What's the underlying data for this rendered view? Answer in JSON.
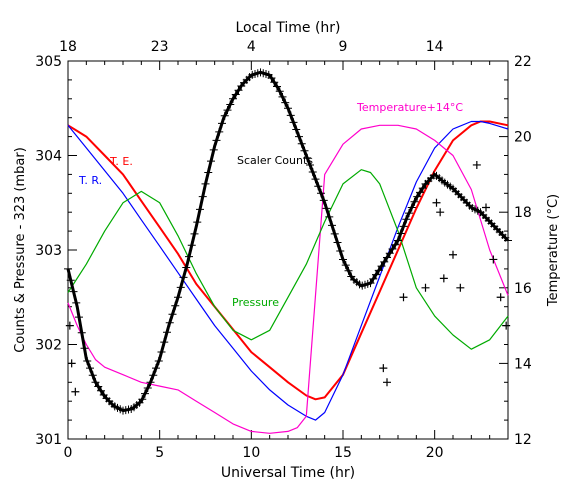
{
  "chart_data": {
    "type": "line",
    "xlabel": "Universal Time (hr)",
    "top_xlabel": "Local Time (hr)",
    "ylabel": "Counts & Pressure - 323 (mbar)",
    "right_ylabel": "Temperature (°C)",
    "xlim": [
      0,
      24
    ],
    "ylim": [
      301,
      305
    ],
    "right_ylim": [
      12,
      22
    ],
    "x_ticks": [
      "0",
      "5",
      "10",
      "15",
      "20"
    ],
    "top_x_ticks": [
      "18",
      "23",
      "4",
      "9",
      "14"
    ],
    "y_ticks": [
      "301",
      "302",
      "303",
      "304",
      "305"
    ],
    "right_y_ticks": [
      "12",
      "14",
      "16",
      "18",
      "20",
      "22"
    ],
    "colors": {
      "te": "#ff0000",
      "tr": "#0000ff",
      "temperature": "#ff00cc",
      "pressure": "#00aa00",
      "counts": "#000000"
    },
    "annotations": {
      "te": "T. E.",
      "tr": "T. R.",
      "counts": "Scaler Counts",
      "temperature": "Temperature+14°C",
      "pressure": "Pressure"
    },
    "series": [
      {
        "key": "te",
        "name": "T. E.",
        "axis": "right",
        "x": [
          0,
          1,
          2,
          3,
          4,
          5,
          6,
          7,
          8,
          9,
          10,
          11,
          12,
          13,
          13.5,
          14,
          15,
          16,
          17,
          18,
          19,
          20,
          21,
          22,
          22.5,
          23,
          24
        ],
        "y": [
          20.3,
          20.0,
          19.5,
          19.0,
          18.3,
          17.6,
          16.9,
          16.1,
          15.5,
          14.9,
          14.3,
          13.9,
          13.5,
          13.15,
          13.05,
          13.1,
          13.7,
          14.8,
          15.9,
          17.0,
          18.1,
          19.1,
          19.9,
          20.3,
          20.4,
          20.4,
          20.3
        ]
      },
      {
        "key": "tr",
        "name": "T. R.",
        "axis": "right",
        "x": [
          0,
          1,
          2,
          3,
          4,
          5,
          6,
          7,
          8,
          9,
          10,
          11,
          12,
          13,
          13.5,
          14,
          15,
          16,
          17,
          18,
          19,
          20,
          21,
          22,
          22.5,
          23,
          24
        ],
        "y": [
          20.3,
          19.7,
          19.1,
          18.5,
          17.8,
          17.1,
          16.4,
          15.7,
          15.0,
          14.4,
          13.8,
          13.3,
          12.9,
          12.6,
          12.5,
          12.7,
          13.7,
          15.0,
          16.3,
          17.6,
          18.8,
          19.7,
          20.2,
          20.4,
          20.4,
          20.35,
          20.2
        ]
      },
      {
        "key": "temperature",
        "name": "Temperature+14°C",
        "axis": "right",
        "x": [
          0,
          0.5,
          1,
          1.5,
          2,
          3,
          4,
          5,
          6,
          7,
          8,
          9,
          10,
          11,
          12,
          12.5,
          13,
          14,
          15,
          16,
          17,
          18,
          19,
          20,
          21,
          22,
          23,
          24
        ],
        "y": [
          15.6,
          15.0,
          14.5,
          14.1,
          13.9,
          13.7,
          13.5,
          13.4,
          13.3,
          13.0,
          12.7,
          12.4,
          12.2,
          12.15,
          12.2,
          12.3,
          12.6,
          19.0,
          19.8,
          20.2,
          20.3,
          20.3,
          20.2,
          19.9,
          19.5,
          18.6,
          17.0,
          15.8
        ]
      },
      {
        "key": "pressure",
        "name": "Pressure",
        "axis": "left",
        "x": [
          0,
          1,
          2,
          3,
          4,
          5,
          6,
          7,
          8,
          9,
          10,
          11,
          12,
          13,
          14,
          15,
          16,
          16.5,
          17,
          18,
          19,
          20,
          21,
          22,
          23,
          24
        ],
        "y": [
          302.55,
          302.85,
          303.2,
          303.5,
          303.62,
          303.5,
          303.15,
          302.75,
          302.4,
          302.15,
          302.05,
          302.15,
          302.5,
          302.85,
          303.3,
          303.7,
          303.85,
          303.82,
          303.7,
          303.2,
          302.6,
          302.3,
          302.1,
          301.95,
          302.05,
          302.3
        ]
      },
      {
        "key": "counts",
        "name": "Scaler Counts",
        "axis": "left",
        "x": [
          0,
          0.5,
          1,
          1.5,
          2,
          2.5,
          3,
          3.5,
          4,
          4.5,
          5,
          5.5,
          6,
          6.5,
          7,
          7.5,
          8,
          8.5,
          9,
          9.5,
          10,
          10.5,
          11,
          11.5,
          12,
          12.5,
          13,
          13.5,
          14,
          14.5,
          15,
          15.5,
          16,
          16.5,
          17,
          17.5,
          18,
          18.5,
          19,
          19.5,
          20,
          20.5,
          21,
          21.5,
          22,
          22.5,
          23,
          23.5,
          24
        ],
        "y": [
          302.8,
          302.4,
          301.85,
          301.6,
          301.45,
          301.35,
          301.3,
          301.32,
          301.4,
          301.6,
          301.85,
          302.2,
          302.5,
          302.85,
          303.25,
          303.7,
          304.1,
          304.4,
          304.6,
          304.75,
          304.85,
          304.88,
          304.85,
          304.7,
          304.5,
          304.25,
          304.0,
          303.75,
          303.5,
          303.2,
          302.9,
          302.7,
          302.62,
          302.65,
          302.8,
          302.95,
          303.1,
          303.35,
          303.55,
          303.7,
          303.8,
          303.72,
          303.65,
          303.55,
          303.45,
          303.4,
          303.3,
          303.2,
          303.1
        ]
      },
      {
        "key": "counts_scatter",
        "name": "",
        "axis": "left",
        "scatter": true,
        "x": [
          0.1,
          0.2,
          0.4,
          17.2,
          17.4,
          18.3,
          19.5,
          20.1,
          20.3,
          20.5,
          21.0,
          21.4,
          22.3,
          22.8,
          23.2,
          23.6,
          23.9
        ],
        "y": [
          302.2,
          301.8,
          301.5,
          301.75,
          301.6,
          302.5,
          302.6,
          303.5,
          303.4,
          302.7,
          302.95,
          302.6,
          303.9,
          303.45,
          302.9,
          302.5,
          302.2
        ]
      }
    ]
  }
}
